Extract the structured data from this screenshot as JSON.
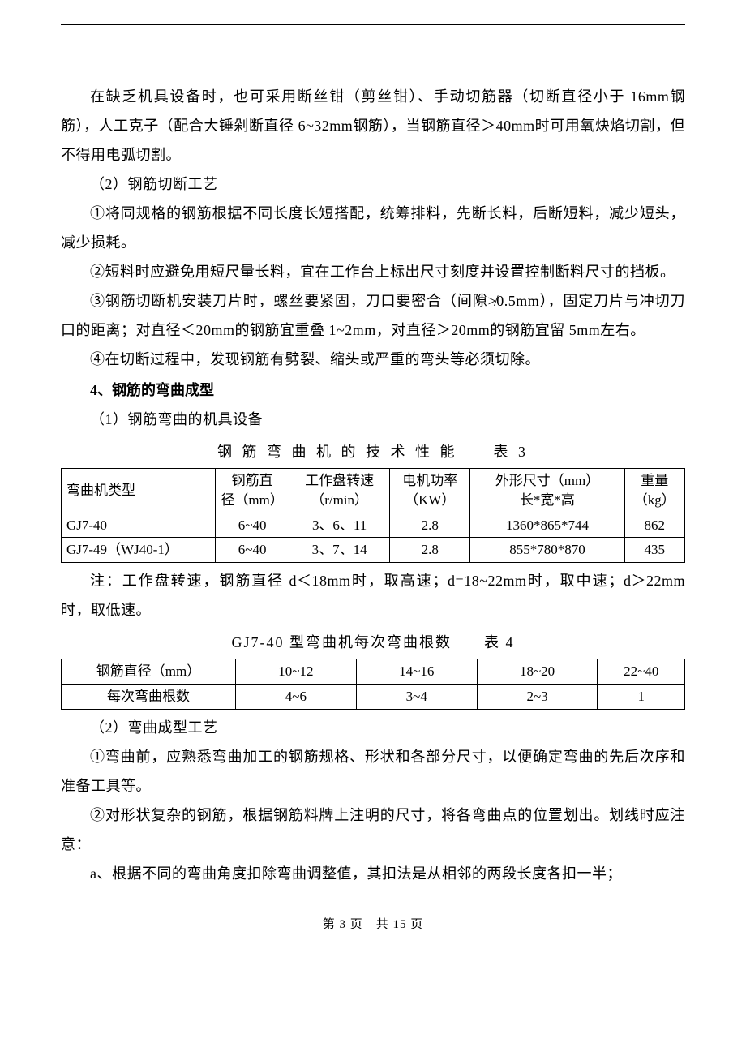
{
  "paragraphs": {
    "p1": "在缺乏机具设备时，也可采用断丝钳（剪丝钳）、手动切筋器（切断直径小于 16mm钢筋），人工克子（配合大锤剁断直径 6~32mm钢筋），当钢筋直径＞40mm时可用氧炔焰切割，但不得用电弧切割。",
    "p2": "（2）钢筋切断工艺",
    "p3": "①将同规格的钢筋根据不同长度长短搭配，统筹排料，先断长料，后断短料，减少短头，减少损耗。",
    "p4": "②短料时应避免用短尺量长料，宜在工作台上标出尺寸刻度并设置控制断料尺寸的挡板。",
    "p5": "③钢筋切断机安装刀片时，螺丝要紧固，刀口要密合（间隙≯0.5mm），固定刀片与冲切刀口的距离；对直径＜20mm的钢筋宜重叠 1~2mm，对直径＞20mm的钢筋宜留 5mm左右。",
    "p6": "④在切断过程中，发现钢筋有劈裂、缩头或严重的弯头等必须切除。",
    "h4": "4、钢筋的弯曲成型",
    "p7": "（1）钢筋弯曲的机具设备",
    "t3cap": "钢 筋 弯 曲 机 的 技 术 性 能　　表 3",
    "note1": "注：工作盘转速，钢筋直径 d＜18mm时，取高速；d=18~22mm时，取中速；d＞22mm时，取低速。",
    "t4cap": "GJ7-40 型弯曲机每次弯曲根数　　表 4",
    "p8": "（2）弯曲成型工艺",
    "p9": "①弯曲前，应熟悉弯曲加工的钢筋规格、形状和各部分尺寸，以便确定弯曲的先后次序和准备工具等。",
    "p10": "②对形状复杂的钢筋，根据钢筋料牌上注明的尺寸，将各弯曲点的位置划出。划线时应注意：",
    "p11": "a、根据不同的弯曲角度扣除弯曲调整值，其扣法是从相邻的两段长度各扣一半；"
  },
  "table3": {
    "headers": {
      "c0": "弯曲机类型",
      "c1a": "钢筋直",
      "c1b": "径（mm）",
      "c2a": "工作盘转速",
      "c2b": "（r/min）",
      "c3a": "电机功率",
      "c3b": "（KW）",
      "c4a": "外形尺寸（mm）",
      "c4b": "长*宽*高",
      "c5a": "重量",
      "c5b": "（kg）"
    },
    "rows": [
      {
        "c0": "GJ7-40",
        "c1": "6~40",
        "c2": "3、6、11",
        "c3": "2.8",
        "c4": "1360*865*744",
        "c5": "862"
      },
      {
        "c0": "GJ7-49（WJ40-1）",
        "c1": "6~40",
        "c2": "3、7、14",
        "c3": "2.8",
        "c4": "855*780*870",
        "c5": "435"
      }
    ],
    "colwidths": [
      "23%",
      "11%",
      "15%",
      "12%",
      "23%",
      "9%"
    ]
  },
  "table4": {
    "rows": [
      {
        "c0": "钢筋直径（mm）",
        "c1": "10~12",
        "c2": "14~16",
        "c3": "18~20",
        "c4": "22~40"
      },
      {
        "c0": "每次弯曲根数",
        "c1": "4~6",
        "c2": "3~4",
        "c3": "2~3",
        "c4": "1"
      }
    ],
    "colwidths": [
      "26%",
      "18%",
      "18%",
      "18%",
      "13%"
    ]
  },
  "footer": {
    "text": "第 3 页　共 15 页"
  }
}
